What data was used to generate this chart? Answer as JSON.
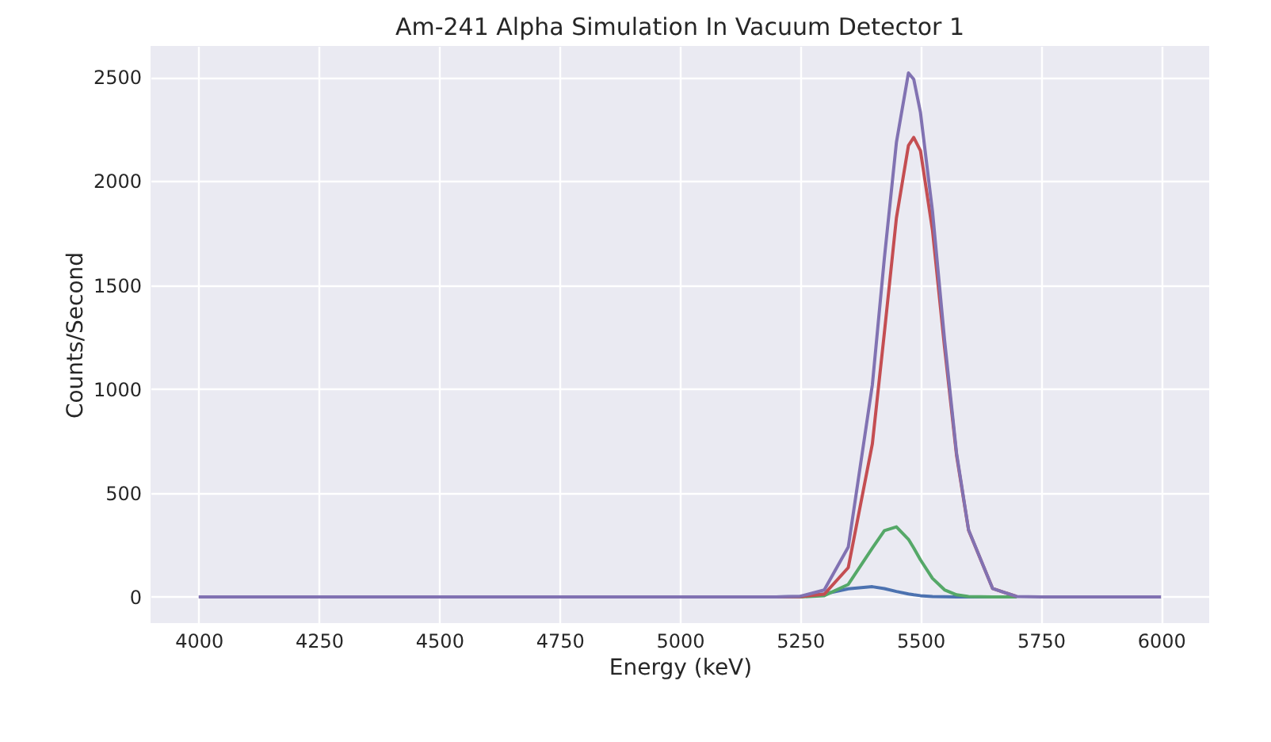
{
  "chart_data": {
    "type": "line",
    "title": "Am-241 Alpha Simulation In Vacuum Detector 1",
    "xlabel": "Energy (keV)",
    "ylabel": "Counts/Second",
    "x": [
      4000,
      5000,
      5200,
      5250,
      5300,
      5350,
      5400,
      5425,
      5450,
      5475,
      5486,
      5500,
      5525,
      5550,
      5575,
      5600,
      5650,
      5700,
      5750,
      6000
    ],
    "series": [
      {
        "color": "#4c72b0",
        "values": [
          null,
          null,
          0,
          2,
          14,
          39,
          49,
          40,
          26,
          14,
          10,
          6,
          2,
          1,
          0,
          0,
          0,
          0,
          null,
          null
        ]
      },
      {
        "color": "#55a868",
        "values": [
          null,
          null,
          0,
          0,
          6,
          60,
          235,
          319,
          337,
          277,
          235,
          178,
          89,
          34,
          10,
          2,
          0,
          0,
          null,
          null
        ]
      },
      {
        "color": "#c44e52",
        "values": [
          null,
          null,
          0,
          1,
          13,
          141,
          736,
          1271,
          1823,
          2171,
          2210,
          2146,
          1763,
          1202,
          681,
          320,
          40,
          2,
          null,
          null
        ]
      },
      {
        "color": "#8172b2",
        "values": [
          0,
          0,
          0,
          3,
          33,
          240,
          1020,
          1630,
          2186,
          2520,
          2490,
          2330,
          1854,
          1237,
          691,
          322,
          40,
          2,
          0,
          0
        ]
      }
    ],
    "xlim": [
      3900,
      6100
    ],
    "ylim": [
      -126,
      2650
    ],
    "xticks": [
      4000,
      4250,
      4500,
      4750,
      5000,
      5250,
      5500,
      5750,
      6000
    ],
    "yticks": [
      0,
      500,
      1000,
      1500,
      2000,
      2500
    ],
    "grid": true,
    "legend": false,
    "marker": "none",
    "line_style": "solid"
  }
}
